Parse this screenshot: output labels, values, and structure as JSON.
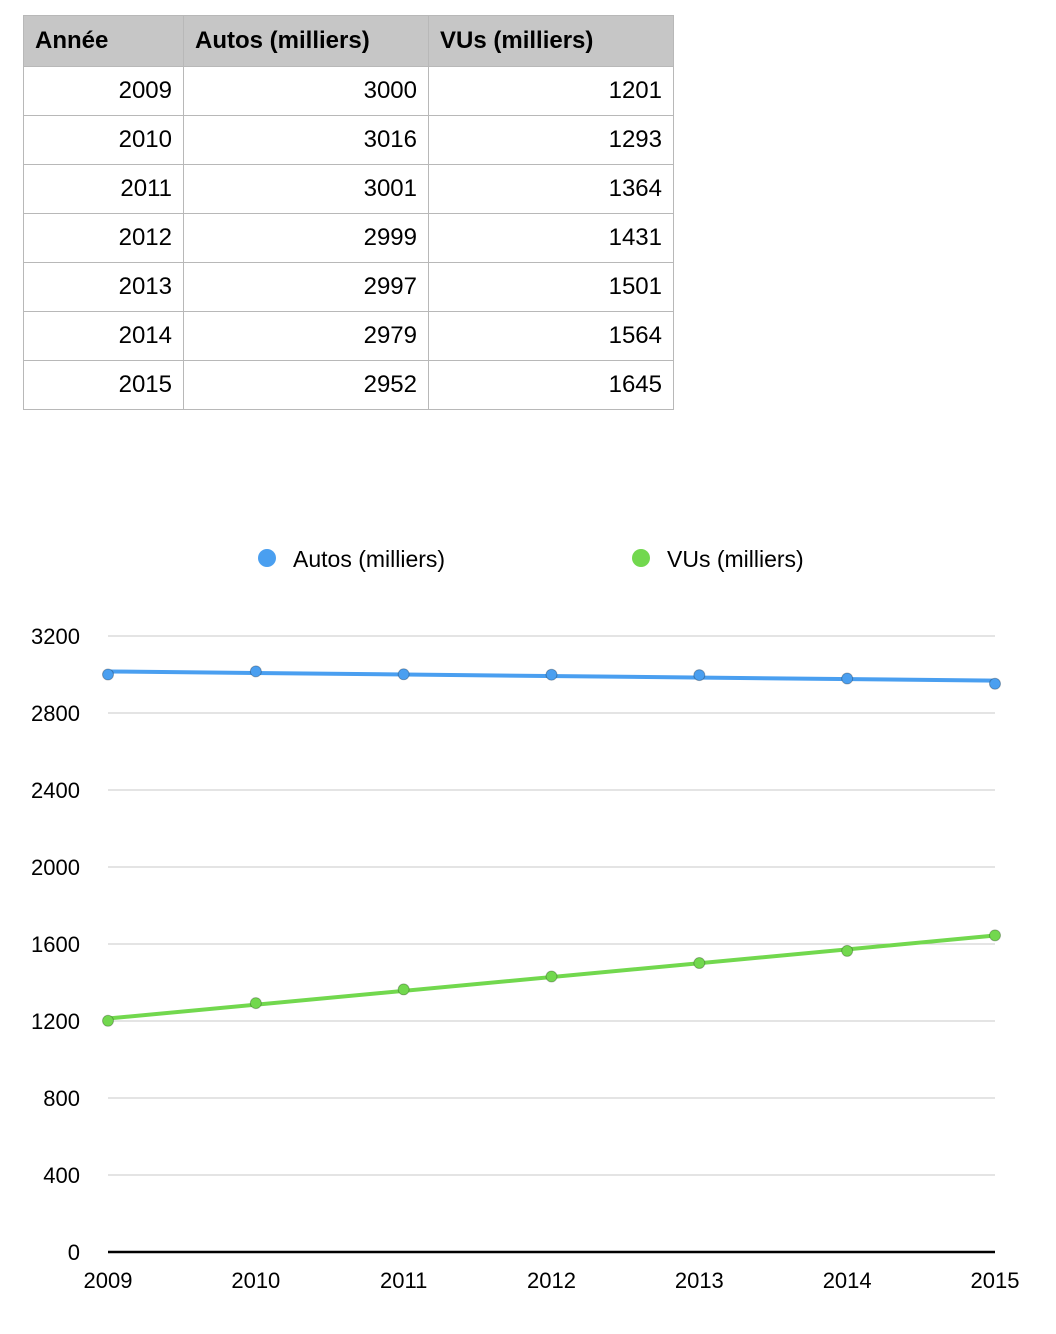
{
  "table": {
    "headers": [
      "Année",
      "Autos (milliers)",
      "VUs (milliers)"
    ],
    "rows": [
      [
        "2009",
        "3000",
        "1201"
      ],
      [
        "2010",
        "3016",
        "1293"
      ],
      [
        "2011",
        "3001",
        "1364"
      ],
      [
        "2012",
        "2999",
        "1431"
      ],
      [
        "2013",
        "2997",
        "1501"
      ],
      [
        "2014",
        "2979",
        "1564"
      ],
      [
        "2015",
        "2952",
        "1645"
      ]
    ]
  },
  "chart_data": {
    "type": "line",
    "title": "",
    "xlabel": "",
    "ylabel": "",
    "x": [
      2009,
      2010,
      2011,
      2012,
      2013,
      2014,
      2015
    ],
    "ylim": [
      0,
      3200
    ],
    "yticks": [
      0,
      400,
      800,
      1200,
      1600,
      2000,
      2400,
      2800,
      3200
    ],
    "grid": true,
    "legend_position": "top",
    "series": [
      {
        "name": "Autos (milliers)",
        "color": "#4a9ff0",
        "values": [
          3000,
          3016,
          3001,
          2999,
          2997,
          2979,
          2952
        ]
      },
      {
        "name": "VUs (milliers)",
        "color": "#72d84e",
        "values": [
          1201,
          1293,
          1364,
          1431,
          1501,
          1564,
          1645
        ]
      }
    ]
  }
}
